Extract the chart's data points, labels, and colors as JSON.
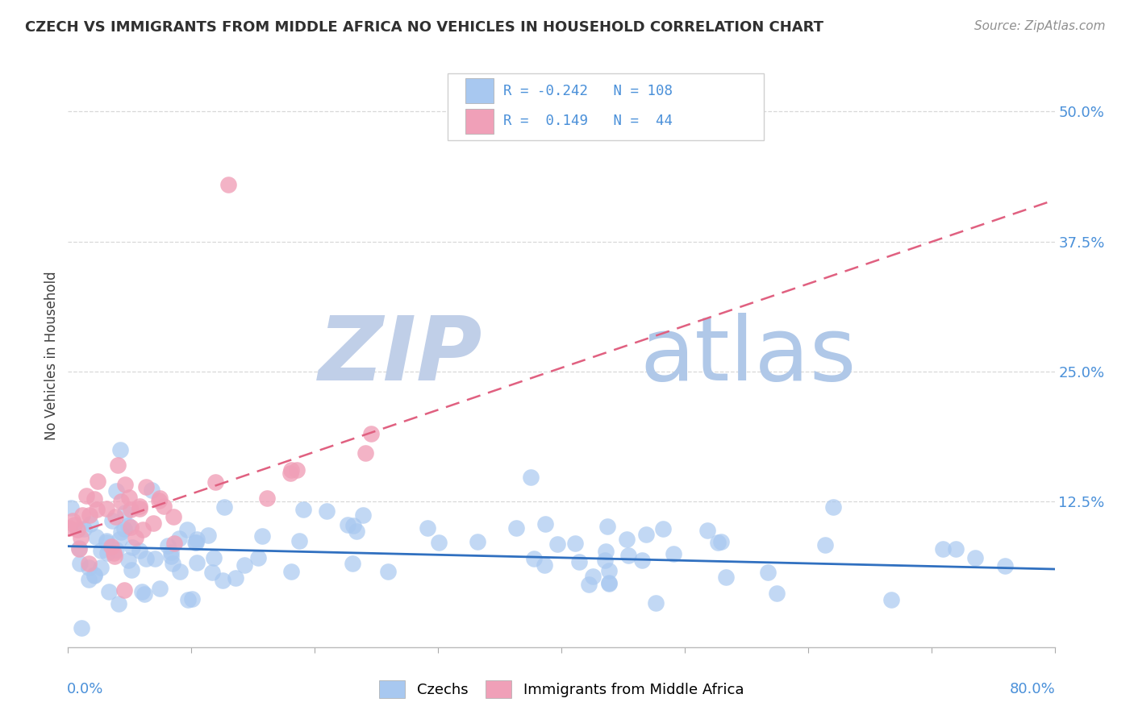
{
  "title": "CZECH VS IMMIGRANTS FROM MIDDLE AFRICA NO VEHICLES IN HOUSEHOLD CORRELATION CHART",
  "source": "Source: ZipAtlas.com",
  "ylabel": "No Vehicles in Household",
  "ytick_labels": [
    "12.5%",
    "25.0%",
    "37.5%",
    "50.0%"
  ],
  "ytick_values": [
    0.125,
    0.25,
    0.375,
    0.5
  ],
  "xlim": [
    0.0,
    0.8
  ],
  "ylim": [
    -0.015,
    0.545
  ],
  "legend_text1": "R = -0.242   N = 108",
  "legend_text2": "R =  0.149   N =  44",
  "color_czech": "#a8c8f0",
  "color_immigrant": "#f0a0b8",
  "color_czech_line": "#3070c0",
  "color_immigrant_line": "#e06080",
  "watermark_zip_color": "#c0cfe8",
  "watermark_atlas_color": "#b0c8e8",
  "background_color": "#ffffff",
  "grid_color": "#d8d8d8",
  "title_color": "#303030",
  "source_color": "#909090",
  "ylabel_color": "#404040",
  "ytick_color": "#4a90d9",
  "xtick_color": "#4a90d9",
  "legend_border_color": "#d0d0d0",
  "czech_line_y0": 0.082,
  "czech_line_y1": 0.06,
  "imm_line_y0": 0.092,
  "imm_line_y1": 0.415
}
